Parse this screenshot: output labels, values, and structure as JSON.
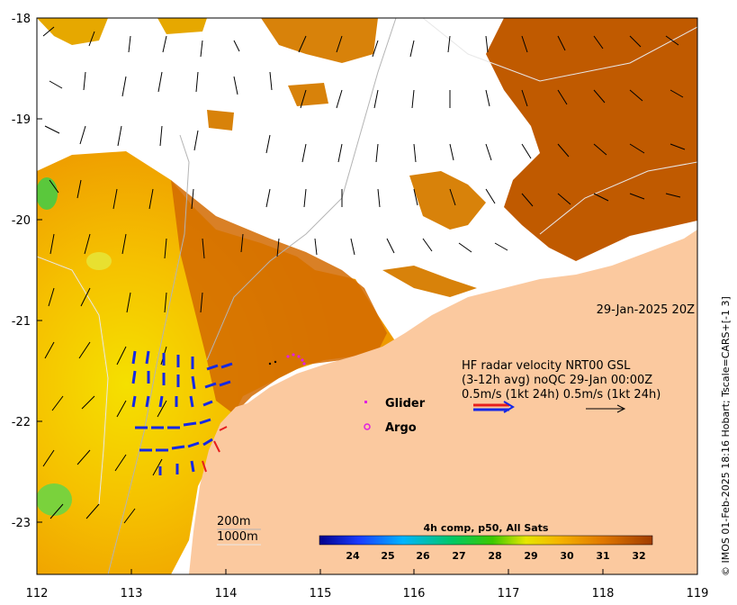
{
  "axes": {
    "x_ticks": [
      "112",
      "113",
      "114",
      "115",
      "116",
      "117",
      "118",
      "119"
    ],
    "y_ticks": [
      "-18",
      "-19",
      "-20",
      "-21",
      "-22",
      "-23"
    ]
  },
  "timestamp": "29-Jan-2025 20Z",
  "legend": {
    "glider": "Glider",
    "argo": "Argo"
  },
  "hf_radar": {
    "line1": "HF radar velocity  NRT00 GSL",
    "line2": "(3-12h avg) noQC 29-Jan 00:00Z",
    "line3": "0.5m/s (1kt 24h)  0.5m/s (1kt 24h)"
  },
  "contours": {
    "label_200": "200m",
    "label_1000": "1000m"
  },
  "colorbar": {
    "title": "4h comp, p50, All Sats",
    "ticks": [
      "24",
      "25",
      "26",
      "27",
      "28",
      "29",
      "30",
      "31",
      "32"
    ]
  },
  "credit": "© IMOS 01-Feb-2025 18:16 Hobart; Tscale=CARS+[-1 3]",
  "colors": {
    "land": "#fbc99f",
    "sst_low": "#f5a300",
    "sst_high": "#b44d00",
    "radar_blue": "#1428e6",
    "radar_red": "#e61e1e",
    "glider": "#e020e0"
  }
}
